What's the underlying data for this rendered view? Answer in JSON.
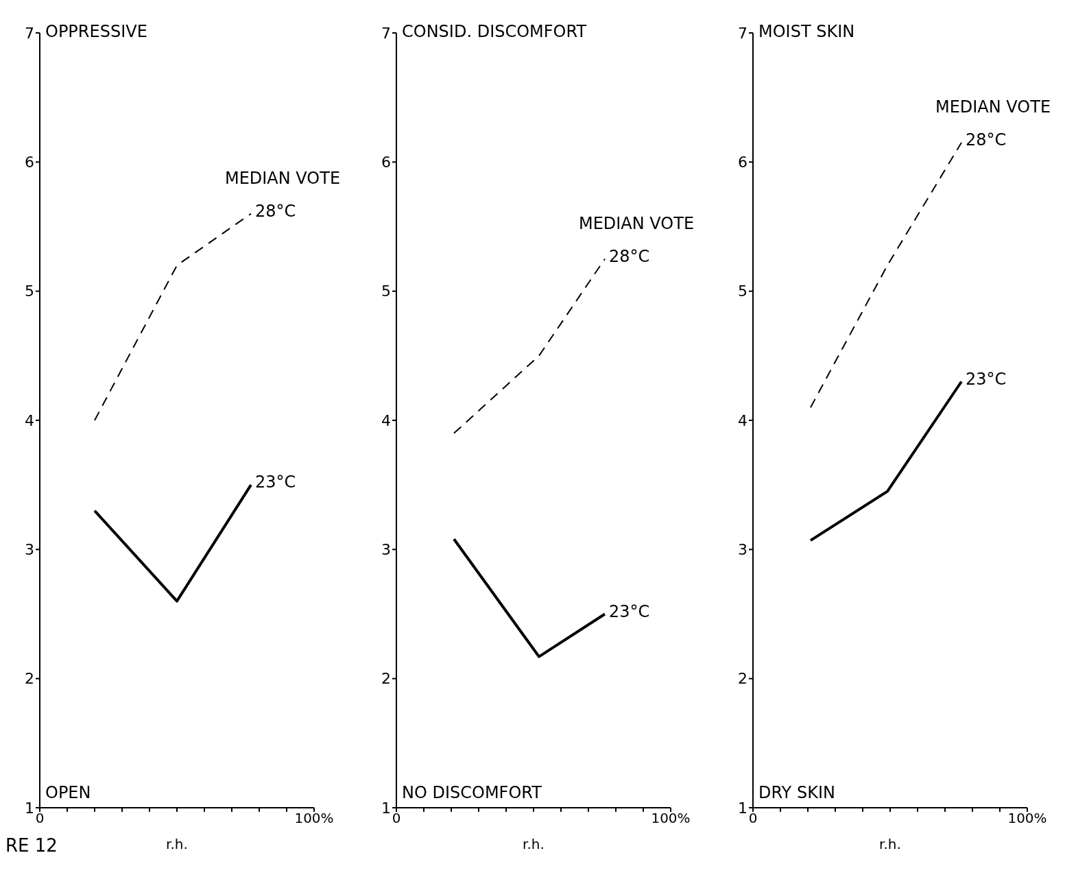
{
  "chart_data": [
    {
      "type": "line",
      "xlabel": "r.h.",
      "annotations": [
        "OPPRESSIVE",
        "OPEN",
        "MEDIAN VOTE",
        "RE 12"
      ],
      "x": [
        20,
        50,
        77
      ],
      "xlim": [
        0,
        100
      ],
      "xticks": [
        {
          "value": 0,
          "label": "0"
        },
        {
          "value": 10,
          "label": null
        },
        {
          "value": 20,
          "label": null
        },
        {
          "value": 30,
          "label": null
        },
        {
          "value": 40,
          "label": null
        },
        {
          "value": 50,
          "label": null
        },
        {
          "value": 60,
          "label": null
        },
        {
          "value": 70,
          "label": null
        },
        {
          "value": 80,
          "label": null
        },
        {
          "value": 90,
          "label": null
        },
        {
          "value": 100,
          "label": "100%"
        }
      ],
      "ylim": [
        1,
        7
      ],
      "yticks": [
        1,
        2,
        3,
        4,
        5,
        6,
        7
      ],
      "grid": false,
      "legend": false,
      "marker": "none",
      "series": [
        {
          "name": "28°C",
          "color": "#000000",
          "line_style": "dashed",
          "values": [
            4.0,
            5.2,
            5.6
          ]
        },
        {
          "name": "23°C",
          "color": "#000000",
          "line_style": "solid",
          "values": [
            3.3,
            2.6,
            3.5
          ]
        }
      ]
    },
    {
      "type": "line",
      "xlabel": "r.h.",
      "annotations": [
        "CONSID. DISCOMFORT",
        "NO DISCOMFORT",
        "MEDIAN VOTE"
      ],
      "x": [
        21,
        52,
        76
      ],
      "xlim": [
        0,
        100
      ],
      "xticks": [
        {
          "value": 0,
          "label": "0"
        },
        {
          "value": 10,
          "label": null
        },
        {
          "value": 20,
          "label": null
        },
        {
          "value": 30,
          "label": null
        },
        {
          "value": 40,
          "label": null
        },
        {
          "value": 50,
          "label": null
        },
        {
          "value": 60,
          "label": null
        },
        {
          "value": 70,
          "label": null
        },
        {
          "value": 80,
          "label": null
        },
        {
          "value": 90,
          "label": null
        },
        {
          "value": 100,
          "label": "100%"
        }
      ],
      "ylim": [
        1,
        7
      ],
      "yticks": [
        1,
        2,
        3,
        4,
        5,
        6,
        7
      ],
      "grid": false,
      "legend": false,
      "marker": "none",
      "series": [
        {
          "name": "28°C",
          "color": "#000000",
          "line_style": "dashed",
          "values": [
            3.9,
            4.5,
            5.25
          ]
        },
        {
          "name": "23°C",
          "color": "#000000",
          "line_style": "solid",
          "values": [
            3.08,
            2.17,
            2.5
          ]
        }
      ]
    },
    {
      "type": "line",
      "xlabel": "r.h.",
      "annotations": [
        "MOIST SKIN",
        "DRY SKIN",
        "MEDIAN VOTE"
      ],
      "x": [
        21,
        49,
        76
      ],
      "xlim": [
        0,
        100
      ],
      "xticks": [
        {
          "value": 0,
          "label": "0"
        },
        {
          "value": 10,
          "label": null
        },
        {
          "value": 20,
          "label": null
        },
        {
          "value": 30,
          "label": null
        },
        {
          "value": 40,
          "label": null
        },
        {
          "value": 50,
          "label": null
        },
        {
          "value": 60,
          "label": null
        },
        {
          "value": 70,
          "label": null
        },
        {
          "value": 80,
          "label": null
        },
        {
          "value": 90,
          "label": null
        },
        {
          "value": 100,
          "label": "100%"
        }
      ],
      "ylim": [
        1,
        7
      ],
      "yticks": [
        1,
        2,
        3,
        4,
        5,
        6,
        7
      ],
      "grid": false,
      "legend": false,
      "marker": "none",
      "series": [
        {
          "name": "28°C",
          "color": "#000000",
          "line_style": "dashed",
          "values": [
            4.1,
            5.2,
            6.15
          ]
        },
        {
          "name": "23°C",
          "color": "#000000",
          "line_style": "solid",
          "values": [
            3.07,
            3.45,
            4.3
          ]
        }
      ]
    }
  ]
}
